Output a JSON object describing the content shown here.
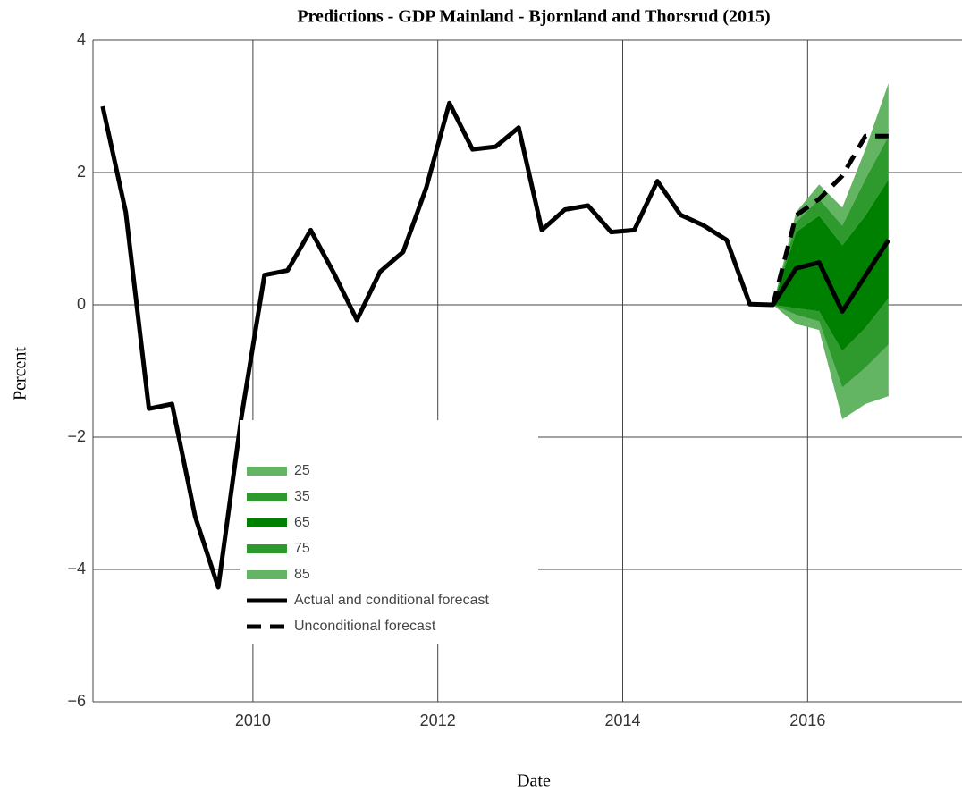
{
  "chart_data": {
    "type": "line",
    "title": "Predictions - GDP Mainland - Bjornland and Thorsrud (2015)",
    "xlabel": "Date",
    "ylabel": "Percent",
    "x": [
      2008.375,
      2008.625,
      2008.875,
      2009.125,
      2009.375,
      2009.625,
      2009.875,
      2010.125,
      2010.375,
      2010.625,
      2010.875,
      2011.125,
      2011.375,
      2011.625,
      2011.875,
      2012.125,
      2012.375,
      2012.625,
      2012.875,
      2013.125,
      2013.375,
      2013.625,
      2013.875,
      2014.125,
      2014.375,
      2014.625,
      2014.875,
      2015.125,
      2015.375,
      2015.625,
      2015.875,
      2016.125,
      2016.375,
      2016.625,
      2016.875
    ],
    "xlim": [
      2008.27,
      2017.67
    ],
    "xticks": [
      2010,
      2012,
      2014,
      2016
    ],
    "ylim": [
      -6,
      4
    ],
    "yticks": [
      {
        "value": -6,
        "label": "−6"
      },
      {
        "value": -4,
        "label": "−4"
      },
      {
        "value": -2,
        "label": "−2"
      },
      0,
      2,
      4
    ],
    "grid": true,
    "bands": [
      {
        "name": "25",
        "color": "#63b463",
        "lower": [
          null,
          null,
          null,
          null,
          null,
          null,
          null,
          null,
          null,
          null,
          null,
          null,
          null,
          null,
          null,
          null,
          null,
          null,
          null,
          null,
          null,
          null,
          null,
          null,
          null,
          null,
          null,
          null,
          null,
          0,
          -0.29,
          -0.38,
          -1.73,
          -1.5,
          -1.38
        ],
        "upper": [
          null,
          null,
          null,
          null,
          null,
          null,
          null,
          null,
          null,
          null,
          null,
          null,
          null,
          null,
          null,
          null,
          null,
          null,
          null,
          null,
          null,
          null,
          null,
          null,
          null,
          null,
          null,
          null,
          null,
          0,
          -0.15,
          -0.25,
          -1.25,
          -0.95,
          -0.6
        ]
      },
      {
        "name": "35",
        "color": "#2e9a2e",
        "lower": [
          null,
          null,
          null,
          null,
          null,
          null,
          null,
          null,
          null,
          null,
          null,
          null,
          null,
          null,
          null,
          null,
          null,
          null,
          null,
          null,
          null,
          null,
          null,
          null,
          null,
          null,
          null,
          null,
          null,
          0,
          -0.15,
          -0.25,
          -1.25,
          -0.95,
          -0.6
        ],
        "upper": [
          null,
          null,
          null,
          null,
          null,
          null,
          null,
          null,
          null,
          null,
          null,
          null,
          null,
          null,
          null,
          null,
          null,
          null,
          null,
          null,
          null,
          null,
          null,
          null,
          null,
          null,
          null,
          null,
          null,
          0,
          -0.05,
          -0.1,
          -0.7,
          -0.35,
          0.1
        ]
      },
      {
        "name": "65",
        "color": "#008000",
        "lower": [
          null,
          null,
          null,
          null,
          null,
          null,
          null,
          null,
          null,
          null,
          null,
          null,
          null,
          null,
          null,
          null,
          null,
          null,
          null,
          null,
          null,
          null,
          null,
          null,
          null,
          null,
          null,
          null,
          null,
          0,
          -0.05,
          -0.1,
          -0.7,
          -0.35,
          0.1
        ],
        "upper": [
          null,
          null,
          null,
          null,
          null,
          null,
          null,
          null,
          null,
          null,
          null,
          null,
          null,
          null,
          null,
          null,
          null,
          null,
          null,
          null,
          null,
          null,
          null,
          null,
          null,
          null,
          null,
          null,
          null,
          0,
          1.1,
          1.35,
          0.9,
          1.35,
          1.9
        ]
      },
      {
        "name": "75",
        "color": "#2e9a2e",
        "lower": [
          null,
          null,
          null,
          null,
          null,
          null,
          null,
          null,
          null,
          null,
          null,
          null,
          null,
          null,
          null,
          null,
          null,
          null,
          null,
          null,
          null,
          null,
          null,
          null,
          null,
          null,
          null,
          null,
          null,
          0,
          1.1,
          1.35,
          0.9,
          1.35,
          1.9
        ],
        "upper": [
          null,
          null,
          null,
          null,
          null,
          null,
          null,
          null,
          null,
          null,
          null,
          null,
          null,
          null,
          null,
          null,
          null,
          null,
          null,
          null,
          null,
          null,
          null,
          null,
          null,
          null,
          null,
          null,
          null,
          0,
          1.25,
          1.6,
          1.2,
          1.9,
          2.55
        ]
      },
      {
        "name": "85",
        "color": "#63b463",
        "lower": [
          null,
          null,
          null,
          null,
          null,
          null,
          null,
          null,
          null,
          null,
          null,
          null,
          null,
          null,
          null,
          null,
          null,
          null,
          null,
          null,
          null,
          null,
          null,
          null,
          null,
          null,
          null,
          null,
          null,
          0,
          1.25,
          1.6,
          1.2,
          1.9,
          2.55
        ],
        "upper": [
          null,
          null,
          null,
          null,
          null,
          null,
          null,
          null,
          null,
          null,
          null,
          null,
          null,
          null,
          null,
          null,
          null,
          null,
          null,
          null,
          null,
          null,
          null,
          null,
          null,
          null,
          null,
          null,
          null,
          0,
          1.4,
          1.82,
          1.47,
          2.35,
          3.35
        ]
      }
    ],
    "series": [
      {
        "name": "Actual and conditional forecast",
        "color": "#000000",
        "dash": false,
        "values": [
          3.0,
          1.4,
          -1.57,
          -1.5,
          -3.2,
          -4.27,
          -1.7,
          0.45,
          0.52,
          1.13,
          0.48,
          -0.23,
          0.5,
          0.8,
          1.77,
          3.05,
          2.35,
          2.39,
          2.68,
          1.13,
          1.44,
          1.5,
          1.1,
          1.13,
          1.87,
          1.36,
          1.2,
          0.98,
          0.01,
          0,
          0.55,
          0.64,
          -0.1,
          0.44,
          0.98
        ]
      },
      {
        "name": "Unconditional forecast",
        "color": "#000000",
        "dash": true,
        "values": [
          null,
          null,
          null,
          null,
          null,
          null,
          null,
          null,
          null,
          null,
          null,
          null,
          null,
          null,
          null,
          null,
          null,
          null,
          null,
          null,
          null,
          null,
          null,
          null,
          null,
          null,
          null,
          null,
          null,
          0,
          1.35,
          1.6,
          1.95,
          2.55,
          2.55
        ]
      }
    ]
  }
}
